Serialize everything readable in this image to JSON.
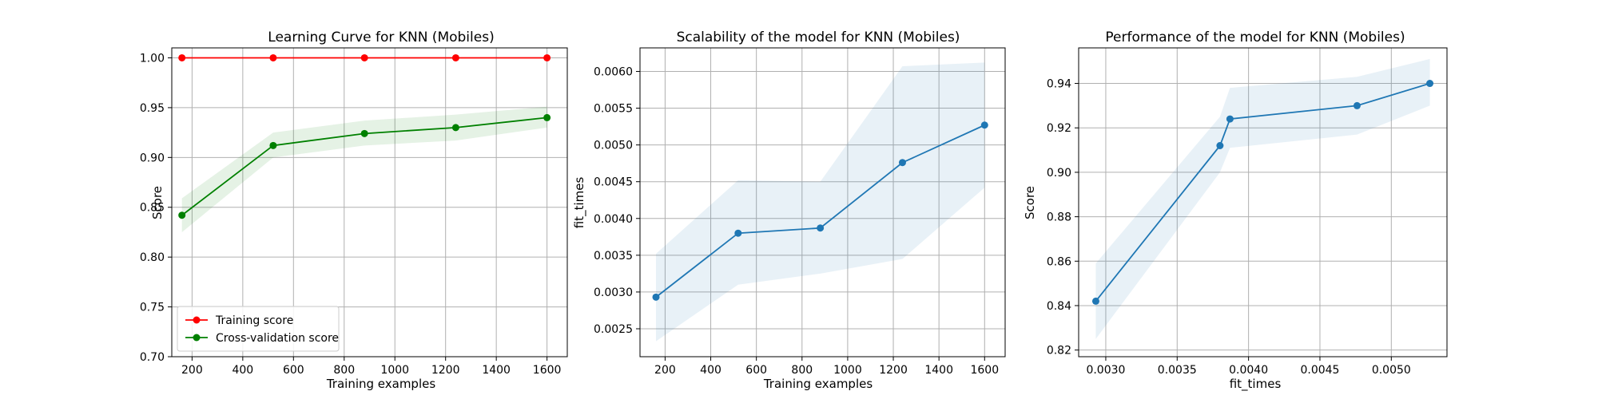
{
  "chart_data": [
    {
      "type": "line",
      "title": "Learning Curve for KNN (Mobiles)",
      "xlabel": "Training examples",
      "ylabel": "Score",
      "xlim": [
        120,
        1680
      ],
      "ylim": [
        0.7,
        1.01
      ],
      "xticks": [
        200,
        400,
        600,
        800,
        1000,
        1200,
        1400,
        1600
      ],
      "yticks": [
        0.7,
        0.75,
        0.8,
        0.85,
        0.9,
        0.95,
        1.0
      ],
      "xtick_decimals": 0,
      "ytick_decimals": 2,
      "grid": true,
      "legend": "lower-left",
      "series": [
        {
          "name": "Training score",
          "color": "#ff0000",
          "x": [
            160,
            520,
            880,
            1240,
            1600
          ],
          "y": [
            1.0,
            1.0,
            1.0,
            1.0,
            1.0
          ]
        },
        {
          "name": "Cross-validation score",
          "color": "#008000",
          "fill_color": "#008000",
          "x": [
            160,
            520,
            880,
            1240,
            1600
          ],
          "y": [
            0.842,
            0.912,
            0.924,
            0.93,
            0.94
          ],
          "band_low": [
            0.825,
            0.9,
            0.912,
            0.917,
            0.93
          ],
          "band_high": [
            0.859,
            0.925,
            0.937,
            0.943,
            0.951
          ]
        }
      ]
    },
    {
      "type": "line",
      "title": "Scalability of the model for KNN (Mobiles)",
      "xlabel": "Training examples",
      "ylabel": "fit_times",
      "xlim": [
        90,
        1690
      ],
      "ylim": [
        0.00212,
        0.00632
      ],
      "xticks": [
        200,
        400,
        600,
        800,
        1000,
        1200,
        1400,
        1600
      ],
      "yticks": [
        0.0025,
        0.003,
        0.0035,
        0.004,
        0.0045,
        0.005,
        0.0055,
        0.006
      ],
      "xtick_decimals": 0,
      "ytick_decimals": 4,
      "grid": true,
      "series": [
        {
          "color": "#1f77b4",
          "fill_color": "#1f77b4",
          "x": [
            160,
            520,
            880,
            1240,
            1600
          ],
          "y": [
            0.00293,
            0.0038,
            0.00387,
            0.00476,
            0.00527
          ],
          "band_low": [
            0.00233,
            0.0031,
            0.00325,
            0.00345,
            0.00442
          ],
          "band_high": [
            0.00352,
            0.00452,
            0.0045,
            0.00607,
            0.00612
          ]
        }
      ]
    },
    {
      "type": "line",
      "title": "Performance of the model for KNN (Mobiles)",
      "xlabel": "fit_times",
      "ylabel": "Score",
      "xlim": [
        0.00281,
        0.00539
      ],
      "ylim": [
        0.817,
        0.956
      ],
      "xticks": [
        0.003,
        0.0035,
        0.004,
        0.0045,
        0.005
      ],
      "yticks": [
        0.82,
        0.84,
        0.86,
        0.88,
        0.9,
        0.92,
        0.94
      ],
      "xtick_decimals": 4,
      "ytick_decimals": 2,
      "grid": true,
      "series": [
        {
          "color": "#1f77b4",
          "fill_color": "#1f77b4",
          "x": [
            0.00293,
            0.0038,
            0.00387,
            0.00476,
            0.00527
          ],
          "y": [
            0.842,
            0.912,
            0.924,
            0.93,
            0.94
          ],
          "band_low": [
            0.825,
            0.9,
            0.911,
            0.917,
            0.93
          ],
          "band_high": [
            0.859,
            0.925,
            0.938,
            0.943,
            0.951
          ]
        }
      ]
    }
  ]
}
